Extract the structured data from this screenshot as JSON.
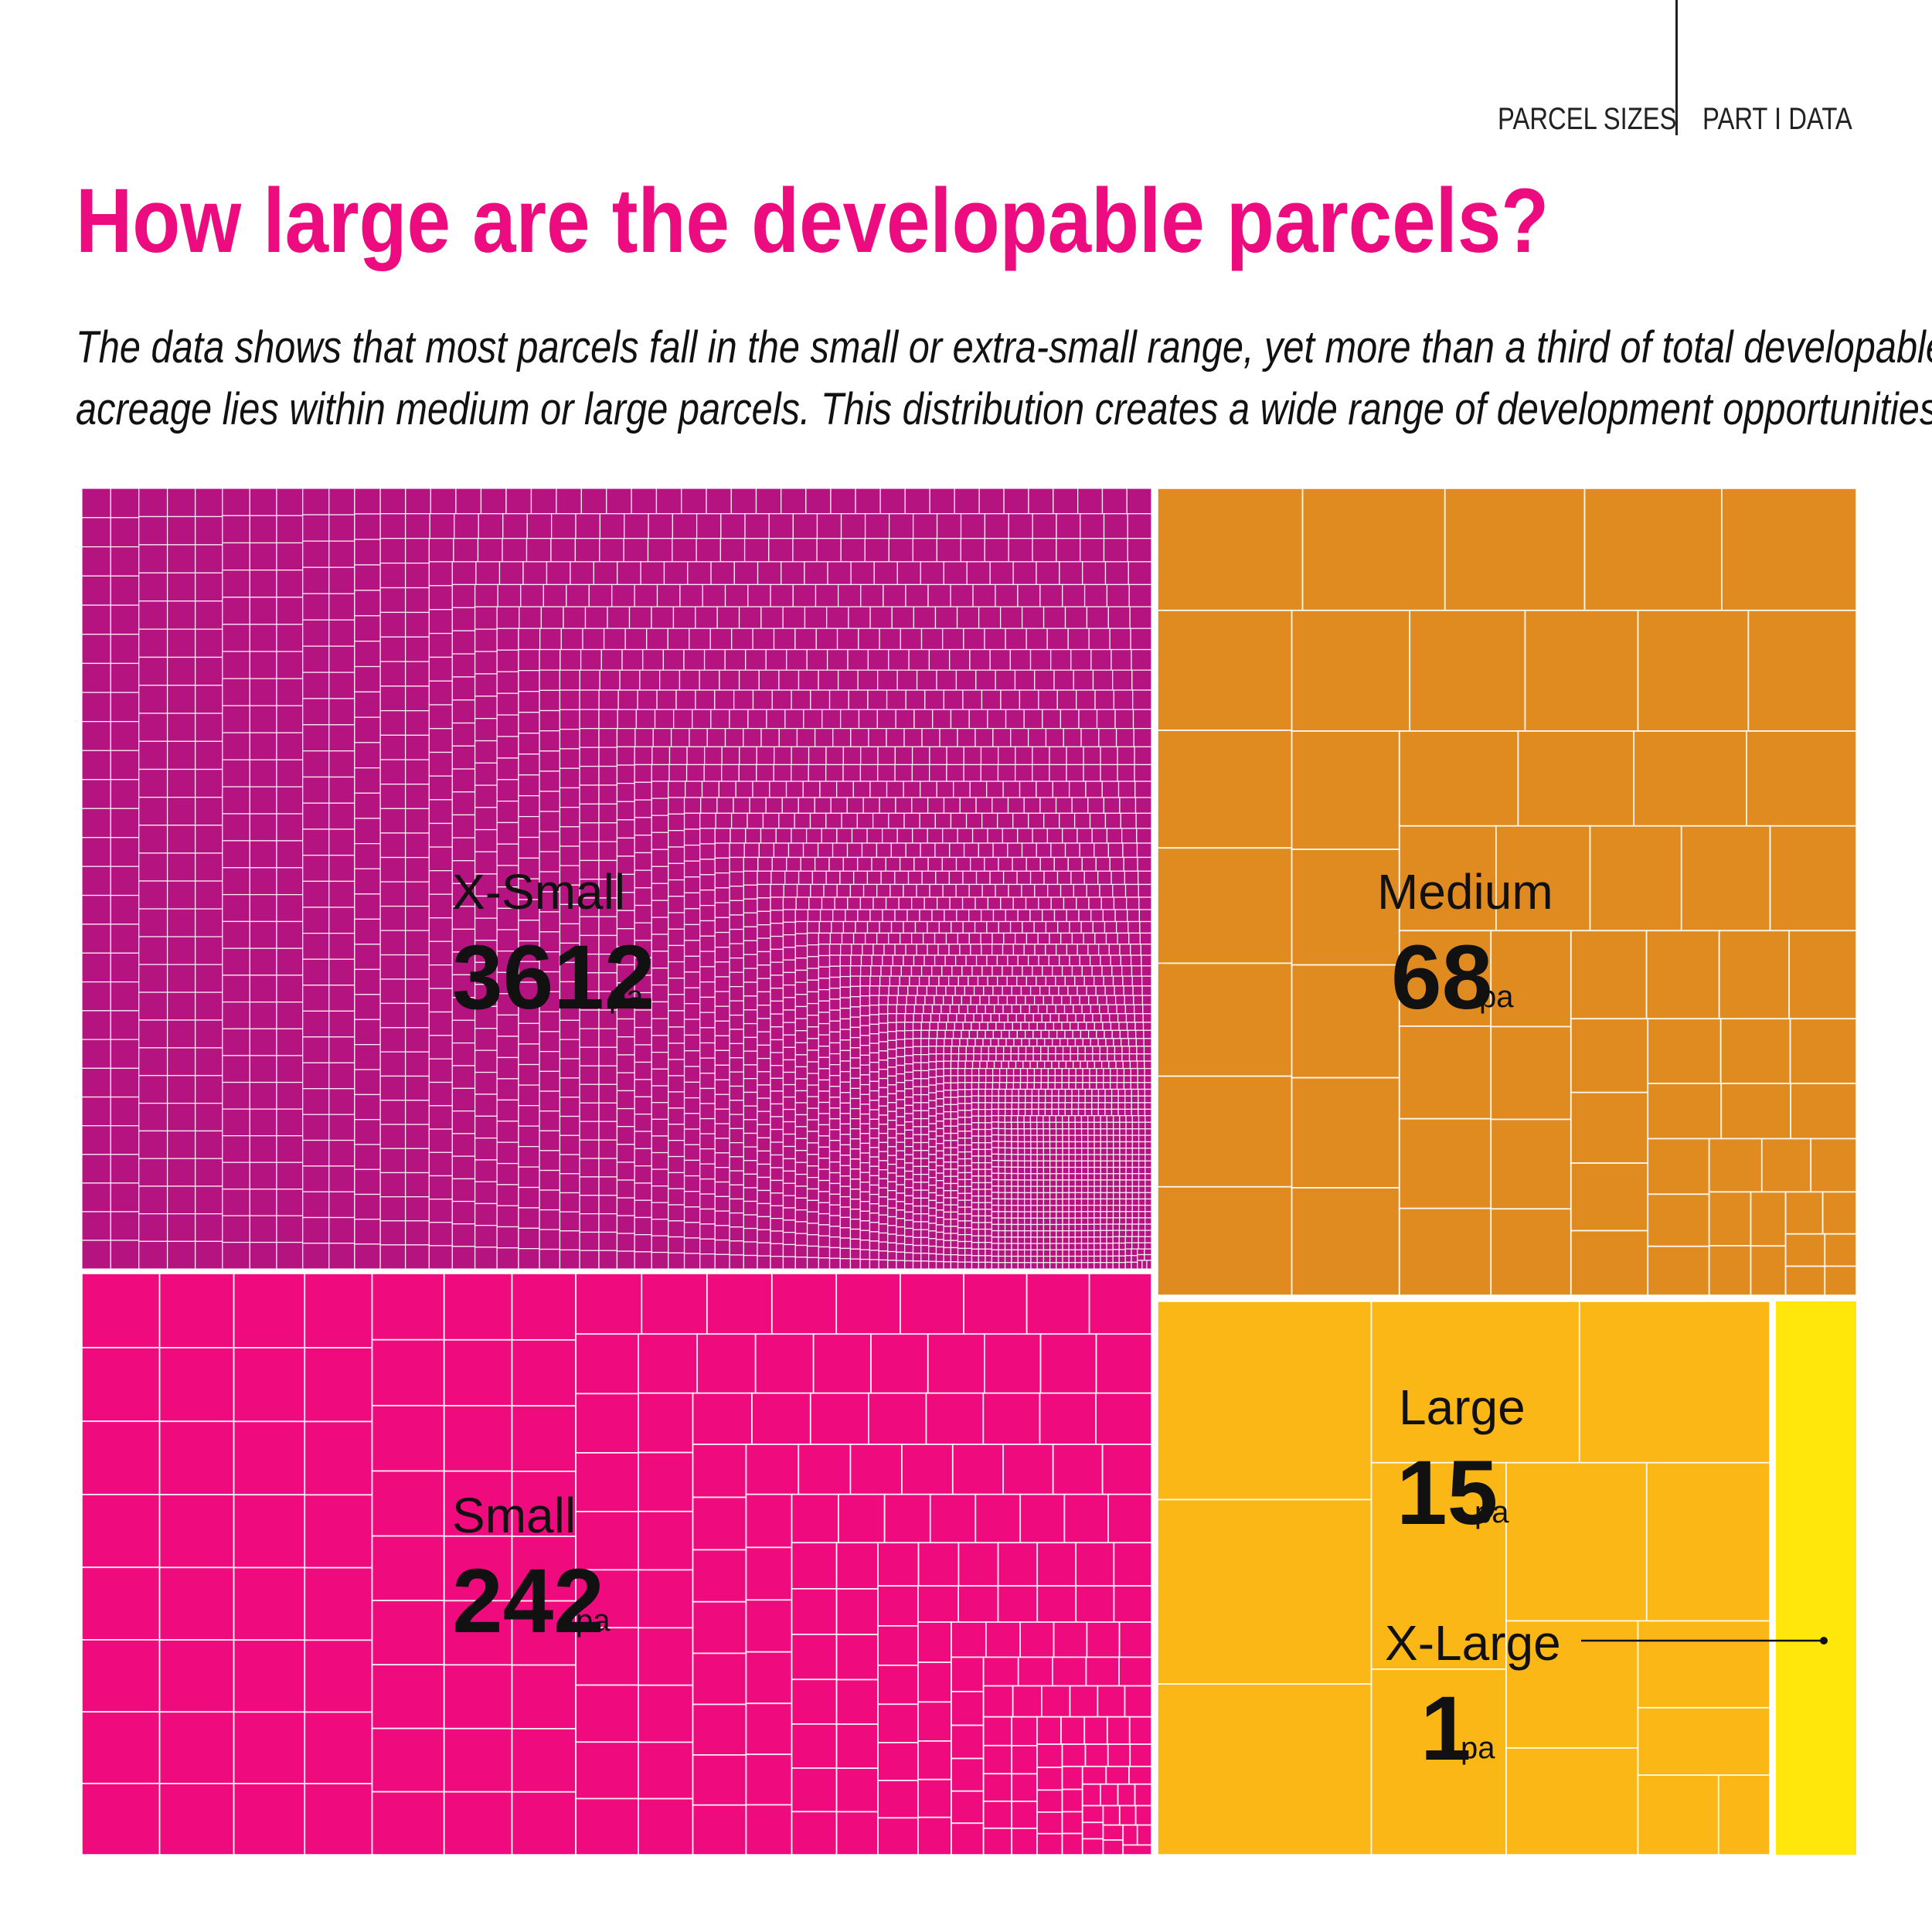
{
  "header": {
    "section": "PARCEL SIZES",
    "part": "PART I DATA"
  },
  "title": "How large are the developable parcels?",
  "subtitle_lines": [
    "The data shows that most parcels fall in the small or extra-small range, yet more than a third of total developable",
    "acreage lies within medium or large parcels. This distribution creates a wide range of development opportunities."
  ],
  "chart_data": {
    "type": "treemap",
    "unit": "pa",
    "segments": [
      {
        "name": "X-Small",
        "count": 3612,
        "color": "#b5137f"
      },
      {
        "name": "Small",
        "count": 242,
        "color": "#ef0a7d"
      },
      {
        "name": "Medium",
        "count": 68,
        "color": "#e08b20"
      },
      {
        "name": "Large",
        "count": 15,
        "color": "#fab716"
      },
      {
        "name": "X-Large",
        "count": 1,
        "color": "#ffe70b"
      }
    ]
  }
}
